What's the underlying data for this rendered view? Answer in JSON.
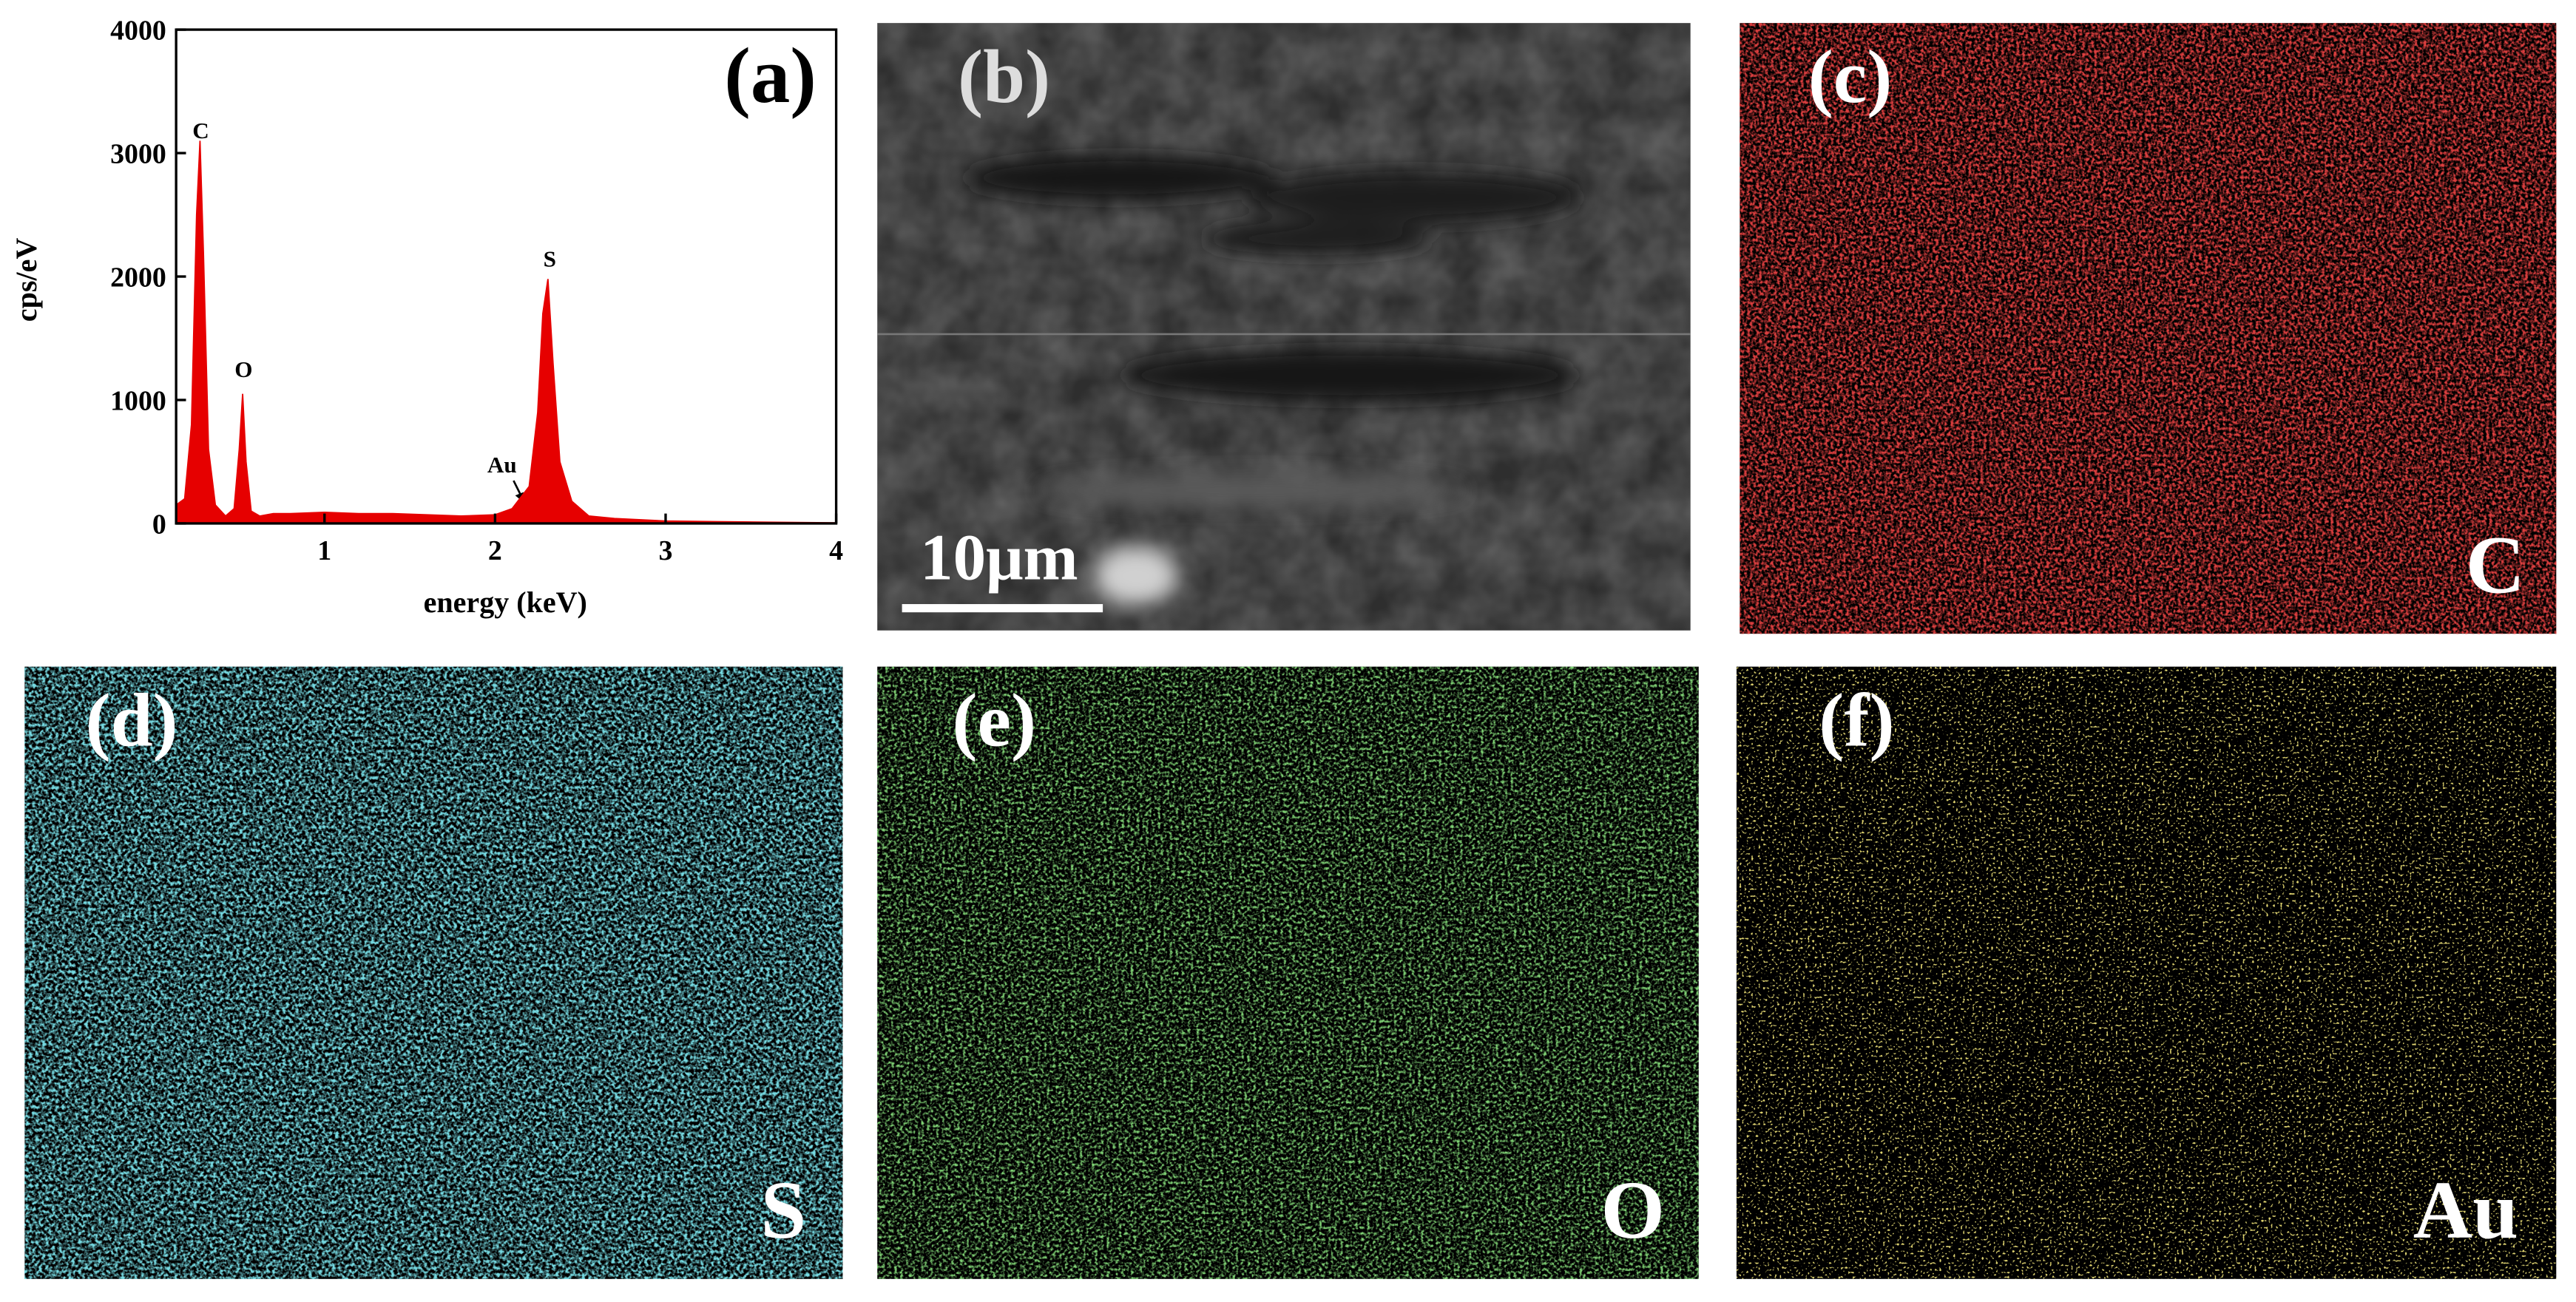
{
  "chart_data": {
    "type": "area",
    "label": "(a)",
    "x_label": "energy (keV)",
    "y_label": "cps/eV",
    "color": "#e60000",
    "x": [
      0.13,
      0.18,
      0.22,
      0.25,
      0.27,
      0.29,
      0.32,
      0.36,
      0.42,
      0.47,
      0.5,
      0.52,
      0.54,
      0.57,
      0.62,
      0.7,
      0.8,
      1.0,
      1.2,
      1.4,
      1.6,
      1.8,
      2.0,
      2.1,
      2.2,
      2.25,
      2.28,
      2.31,
      2.34,
      2.38,
      2.45,
      2.55,
      2.7,
      3.0,
      3.3,
      3.6,
      4.0
    ],
    "values": [
      150,
      200,
      800,
      2500,
      3100,
      2200,
      600,
      150,
      60,
      120,
      600,
      1050,
      500,
      100,
      60,
      80,
      80,
      90,
      80,
      80,
      70,
      60,
      70,
      120,
      300,
      900,
      1700,
      1980,
      1300,
      500,
      180,
      60,
      40,
      20,
      15,
      10,
      5
    ],
    "xlim": [
      0.13,
      4
    ],
    "ylim": [
      0,
      4000
    ],
    "xticks": [
      1,
      2,
      3,
      4
    ],
    "yticks": [
      0,
      1000,
      2000,
      3000,
      4000
    ],
    "annotations": [
      "C",
      "O",
      "S",
      "Au"
    ]
  },
  "panels": [
    {
      "label": "(b)",
      "scale_bar": "10μm"
    },
    {
      "label": "(c)",
      "element": "C"
    },
    {
      "label": "(d)",
      "element": "S"
    },
    {
      "label": "(e)",
      "element": "O"
    },
    {
      "label": "(f)",
      "element": "Au"
    }
  ]
}
